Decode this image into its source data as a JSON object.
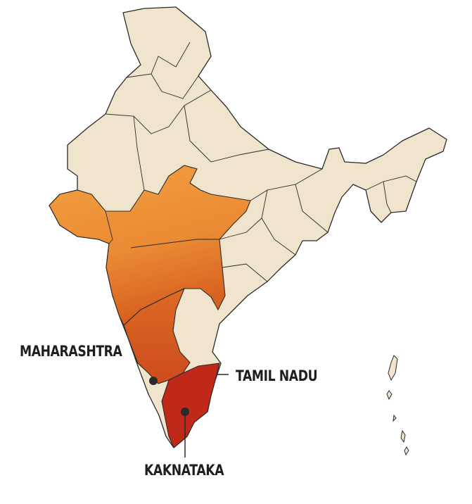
{
  "map": {
    "colors": {
      "land": "#f1e4cc",
      "border": "#2a2a2a",
      "highlight_light": "#f29a3c",
      "highlight_mid": "#d4561f",
      "highlight_dark": "#c0281a"
    },
    "labels": {
      "maharashtra": "MAHARASHTRA",
      "tamil_nadu": "TAMIL NADU",
      "karnataka": "KAKNATAKA"
    }
  }
}
